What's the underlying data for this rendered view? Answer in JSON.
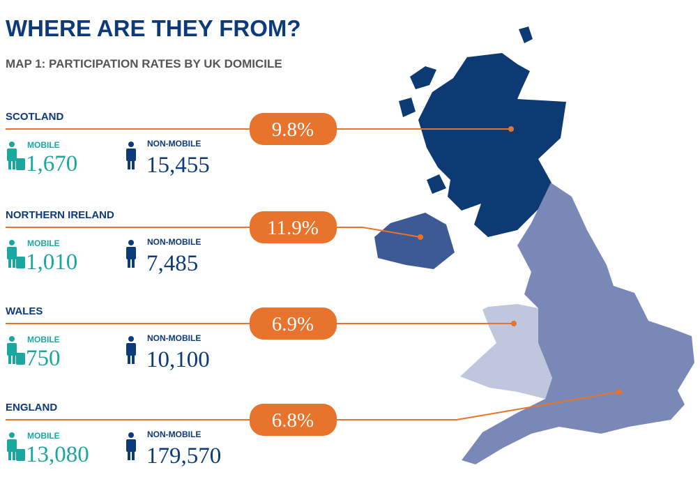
{
  "header": {
    "title": "WHERE ARE THEY FROM?",
    "subtitle": "MAP 1: PARTICIPATION RATES BY UK DOMICILE"
  },
  "regions": [
    {
      "name": "SCOTLAND",
      "rate": "9.8%",
      "mobile_label": "MOBILE",
      "mobile": "1,670",
      "non_mobile_label": "NON-MOBILE",
      "non_mobile": "15,455"
    },
    {
      "name": "NORTHERN IRELAND",
      "rate": "11.9%",
      "mobile_label": "MOBILE",
      "mobile": "1,010",
      "non_mobile_label": "NON-MOBILE",
      "non_mobile": "7,485"
    },
    {
      "name": "WALES",
      "rate": "6.9%",
      "mobile_label": "MOBILE",
      "mobile": "750",
      "non_mobile_label": "NON-MOBILE",
      "non_mobile": "10,100"
    },
    {
      "name": "ENGLAND",
      "rate": "6.8%",
      "mobile_label": "MOBILE",
      "mobile": "13,080",
      "non_mobile_label": "NON-MOBILE",
      "non_mobile": "179,570"
    }
  ]
}
